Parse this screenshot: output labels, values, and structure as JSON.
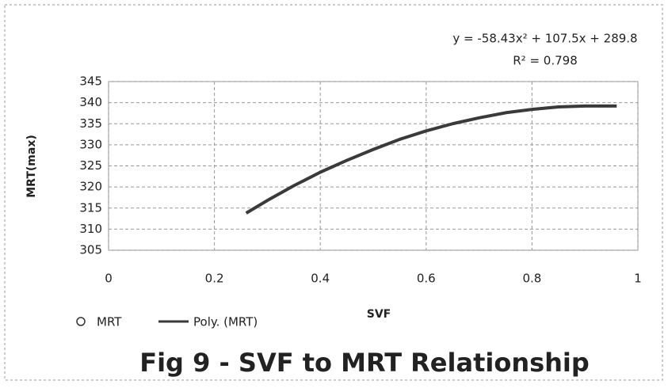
{
  "chart_data": {
    "type": "line",
    "title": "Fig 9 - SVF to MRT Relationship",
    "xlabel": "SVF",
    "ylabel": "MRT(max)",
    "annotations": [
      "y = -58.43x² + 107.5x + 289.8",
      "R² = 0.798"
    ],
    "x": [
      0.26,
      0.3,
      0.35,
      0.4,
      0.45,
      0.5,
      0.55,
      0.6,
      0.65,
      0.7,
      0.75,
      0.8,
      0.85,
      0.9,
      0.96
    ],
    "series": [
      {
        "name": "Poly. (MRT)",
        "color": "#3a3a3a",
        "values": [
          313.8,
          316.8,
          320.3,
          323.5,
          326.3,
          328.9,
          331.3,
          333.3,
          335.0,
          336.4,
          337.6,
          338.4,
          339.0,
          339.2,
          339.2
        ]
      }
    ],
    "legend": [
      {
        "name": "MRT",
        "symbol": "circle"
      },
      {
        "name": "Poly. (MRT)",
        "symbol": "line"
      }
    ],
    "xlim": [
      0,
      1
    ],
    "xticks": [
      0,
      0.2,
      0.4,
      0.6,
      0.8,
      1
    ],
    "ylim": [
      305,
      345
    ],
    "yticks": [
      305,
      310,
      315,
      320,
      325,
      330,
      335,
      340,
      345
    ],
    "grid": true
  }
}
